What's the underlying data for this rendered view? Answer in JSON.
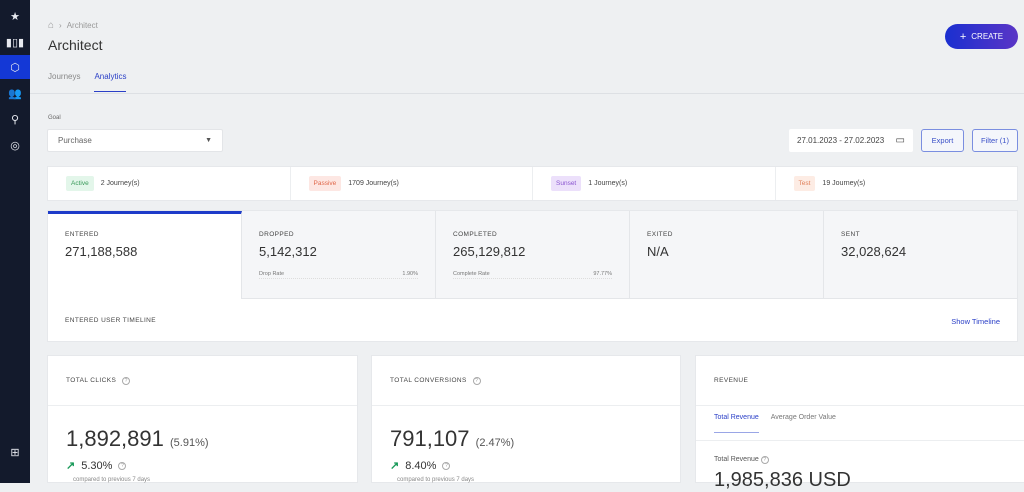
{
  "sidebar": {
    "items": [
      {
        "icon": "star-icon"
      },
      {
        "icon": "bar-chart-icon"
      },
      {
        "icon": "architect-icon",
        "active": true
      },
      {
        "icon": "users-icon"
      },
      {
        "icon": "lightbulb-icon"
      },
      {
        "icon": "chart-circle-icon"
      },
      {
        "icon": "apps-grid-icon"
      }
    ]
  },
  "header": {
    "breadcrumb": "Architect",
    "title": "Architect",
    "create_label": "CREATE"
  },
  "tabs": [
    {
      "label": "Journeys"
    },
    {
      "label": "Analytics",
      "active": true
    }
  ],
  "filters": {
    "goal_label": "Goal",
    "goal_value": "Purchase",
    "date_range": "27.01.2023 - 27.02.2023",
    "export_label": "Export",
    "filter_label": "Filter (1)"
  },
  "statuses": [
    {
      "badge": "Active",
      "count": "2 Journey(s)",
      "bg": "#e3f6ea",
      "fg": "#3a9a5a"
    },
    {
      "badge": "Passive",
      "count": "1709 Journey(s)",
      "bg": "#fde7e3",
      "fg": "#e0674a"
    },
    {
      "badge": "Sunset",
      "count": "1 Journey(s)",
      "bg": "#ece0fb",
      "fg": "#8a55d0"
    },
    {
      "badge": "Test",
      "count": "19 Journey(s)",
      "bg": "#fdece4",
      "fg": "#e0805a"
    }
  ],
  "metrics": [
    {
      "label": "ENTERED",
      "value": "271,188,588"
    },
    {
      "label": "DROPPED",
      "value": "5,142,312",
      "rate_label": "Drop Rate",
      "rate": "1.90%"
    },
    {
      "label": "COMPLETED",
      "value": "265,129,812",
      "rate_label": "Complete Rate",
      "rate": "97.77%"
    },
    {
      "label": "EXITED",
      "value": "N/A"
    },
    {
      "label": "SENT",
      "value": "32,028,624"
    }
  ],
  "timeline": {
    "label": "ENTERED USER TIMELINE",
    "link": "Show Timeline"
  },
  "cards": {
    "clicks": {
      "title": "TOTAL CLICKS",
      "value": "1,892,891",
      "pct": "(5.91%)",
      "trend": "5.30%",
      "compare": "compared to previous 7 days"
    },
    "conversions": {
      "title": "TOTAL CONVERSIONS",
      "value": "791,107",
      "pct": "(2.47%)",
      "trend": "8.40%",
      "compare": "compared to previous 7 days"
    },
    "revenue": {
      "title": "REVENUE",
      "tabs": [
        "Total Revenue",
        "Average Order Value"
      ],
      "label": "Total Revenue",
      "value": "1,985,836 USD"
    }
  },
  "colors": {
    "sidebar": "#131a2c",
    "accent": "#1d3bc9",
    "trend_up": "#1a9a5a"
  }
}
